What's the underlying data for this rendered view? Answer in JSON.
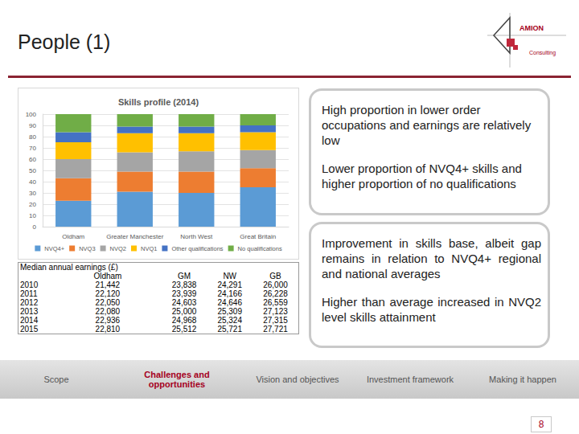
{
  "chart_data": {
    "type": "bar",
    "title": "Skills profile (2014)",
    "categories": [
      "Oldham",
      "Greater Manchester",
      "North West",
      "Great Britain"
    ],
    "series": [
      {
        "name": "NVQ4+",
        "color": "#5b9bd5",
        "values": [
          23,
          31,
          30,
          35
        ]
      },
      {
        "name": "NVQ3",
        "color": "#ed7d31",
        "values": [
          20,
          18,
          19,
          17
        ]
      },
      {
        "name": "NVQ2",
        "color": "#a5a5a5",
        "values": [
          17,
          17,
          18,
          16
        ]
      },
      {
        "name": "NVQ1",
        "color": "#ffc000",
        "values": [
          15,
          17,
          16,
          16
        ]
      },
      {
        "name": "Other qualifications",
        "color": "#4472c4",
        "values": [
          9,
          6,
          6,
          6
        ]
      },
      {
        "name": "No qualifications",
        "color": "#70ad47",
        "values": [
          16,
          11,
          11,
          10
        ]
      }
    ],
    "stacked": true,
    "grid": true,
    "legend": "bottom",
    "ylim": [
      0,
      100
    ],
    "yticks": [
      0,
      10,
      20,
      30,
      40,
      50,
      60,
      70,
      80,
      90,
      100
    ]
  },
  "slide": {
    "title": "People (1)",
    "logo": {
      "name": "AMION",
      "subtitle": "Consulting"
    },
    "table": {
      "title": "Median annual earnings (£)",
      "columns": [
        "Oldham",
        "GM",
        "NW",
        "GB"
      ],
      "rows": [
        {
          "year": "2010",
          "values": [
            "21,442",
            "23,838",
            "24,291",
            "26,000"
          ]
        },
        {
          "year": "2011",
          "values": [
            "22,120",
            "23,939",
            "24,166",
            "26,228"
          ]
        },
        {
          "year": "2012",
          "values": [
            "22,050",
            "24,603",
            "24,646",
            "26,559"
          ]
        },
        {
          "year": "2013",
          "values": [
            "22,080",
            "25,000",
            "25,309",
            "27,123"
          ]
        },
        {
          "year": "2014",
          "values": [
            "22,936",
            "24,968",
            "25,324",
            "27,315"
          ]
        },
        {
          "year": "2015",
          "values": [
            "22,810",
            "25,512",
            "25,721",
            "27,721"
          ]
        }
      ]
    },
    "notes": [
      [
        "High proportion in lower order occupations and earnings are relatively low",
        "Lower proportion of NVQ4+ skills and higher proportion of no qualifications"
      ],
      [
        "Improvement in skills base, albeit gap remains in relation to NVQ4+ regional and national averages",
        "Higher than average increased in NVQ2 level skills attainment"
      ]
    ],
    "navigation": [
      {
        "label": "Scope",
        "active": false
      },
      {
        "label": "Challenges and opportunities",
        "active": true
      },
      {
        "label": "Vision and objectives",
        "active": false
      },
      {
        "label": "Investment framework",
        "active": false
      },
      {
        "label": "Making it happen",
        "active": false
      }
    ],
    "page_number": "8"
  }
}
